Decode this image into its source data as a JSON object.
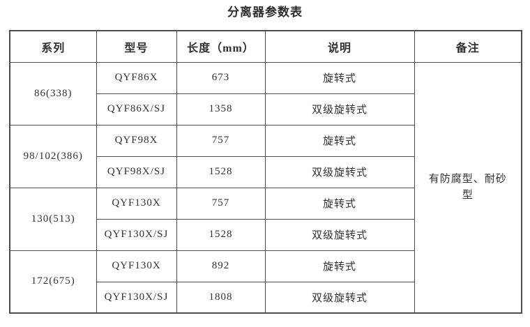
{
  "page": {
    "title": "分离器参数表"
  },
  "table": {
    "headers": [
      "系列",
      "型号",
      "长度（mm）",
      "说明",
      "备注"
    ],
    "remark": "有防腐型、耐砂型",
    "groups": [
      {
        "series": "86(338)",
        "rows": [
          {
            "model": "QYF86X",
            "length": "673",
            "desc": "旋转式"
          },
          {
            "model": "QYF86X/SJ",
            "length": "1358",
            "desc": "双级旋转式"
          }
        ]
      },
      {
        "series": "98/102(386)",
        "rows": [
          {
            "model": "QYF98X",
            "length": "757",
            "desc": "旋转式"
          },
          {
            "model": "QYF98X/SJ",
            "length": "1528",
            "desc": "双级旋转式"
          }
        ]
      },
      {
        "series": "130(513)",
        "rows": [
          {
            "model": "QYF130X",
            "length": "757",
            "desc": "旋转式"
          },
          {
            "model": "QYF130X/SJ",
            "length": "1528",
            "desc": "双级旋转式"
          }
        ]
      },
      {
        "series": "172(675)",
        "rows": [
          {
            "model": "QYF130X",
            "length": "892",
            "desc": "旋转式"
          },
          {
            "model": "QYF130X/SJ",
            "length": "1808",
            "desc": "双级旋转式"
          }
        ]
      }
    ],
    "colors": {
      "border": "#4d4d4d",
      "text": "#303030",
      "background": "#ffffff"
    }
  }
}
